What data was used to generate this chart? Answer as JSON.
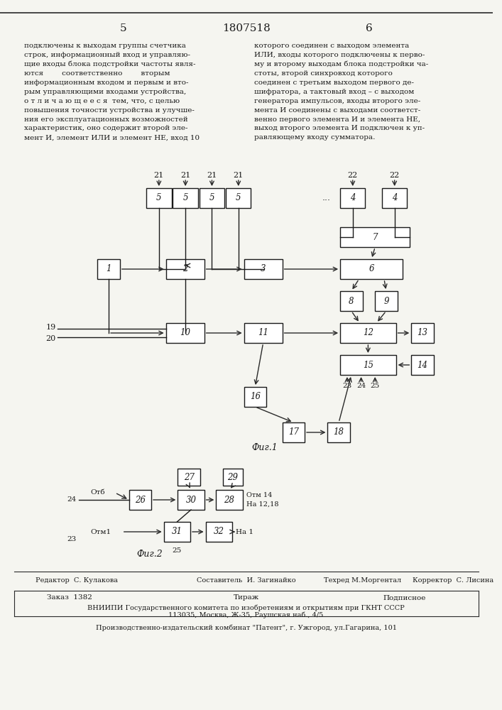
{
  "page_num_left": "5",
  "patent_num": "1807518",
  "page_num_right": "6",
  "text_left": "подключены к выходам группы счетчика строк, информационный вход и управляющие входы блока подстройки частоты являются соответственно вторым информационным входом и первым и вторым управляющими входами устройства,\nо т л и ч а ю щ е е с я  тем, что, с целью повышения точности устройства и улучшения его эксплуатационных возможностей характеристик, оно содержит второй элемент И, элемент ИЛИ и элемент НЕ, вход 10",
  "text_right": "которого соединен с выходом элемента ИЛИ, входы которого подключены к первому и второму выходам блока подстройки частоты, второй синхровход которого соединен с третьим выходом первого дешифратора, а тактовый вход – с выходом генератора импульсов, входы второго элемента И соединены с выходами соответственно первого элемента И и элемента НЕ, выход второго элемента И подключен к управляющему входу сумматора.",
  "fig1_label": "Фиг.1",
  "fig2_label": "Фиг.2",
  "editor_line": "Редактор  С. Кулакова          Составитель  И. Загинайко          Техред М.Моргентал          Корректор  С. Лисина",
  "order_line": "Заказ  1382                         Тираж                              Подписное",
  "vniip_line": "ВНИИПИ Государственного комитета по изобретениям и открытиям при ГКНТ СССР",
  "address_line": "113035, Москва, Ж-35, Раушская наб., 4/5",
  "factory_line": "Производственно-издательский комбинат \"Патент\", г. Ужгород, ул.Гагарина, 101",
  "bg_color": "#f5f5f0",
  "text_color": "#1a1a1a",
  "line_color": "#2a2a2a"
}
